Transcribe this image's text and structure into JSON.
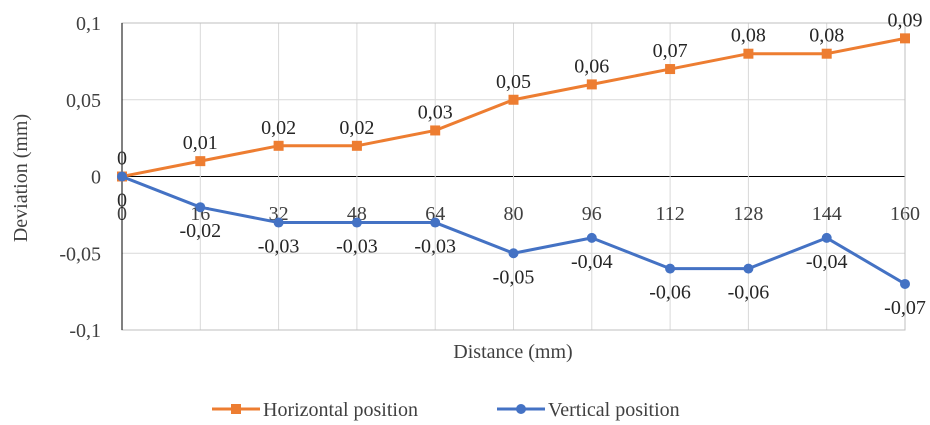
{
  "chart_data": {
    "type": "line",
    "xlabel": "Distance (mm)",
    "ylabel": "Deviation (mm)",
    "categories": [
      "0",
      "16",
      "32",
      "48",
      "64",
      "80",
      "96",
      "112",
      "128",
      "144",
      "160"
    ],
    "x": [
      0,
      16,
      32,
      48,
      64,
      80,
      96,
      112,
      128,
      144,
      160
    ],
    "ylim": [
      -0.1,
      0.1
    ],
    "yticks": [
      "-0,1",
      "-0,05",
      "0",
      "0,05",
      "0,1"
    ],
    "ytick_values": [
      -0.1,
      -0.05,
      0,
      0.05,
      0.1
    ],
    "grid": true,
    "legend_position": "bottom",
    "series": [
      {
        "name": "Horizontal position",
        "color": "#ED7D31",
        "marker": "square",
        "values": [
          0,
          0.01,
          0.02,
          0.02,
          0.03,
          0.05,
          0.06,
          0.07,
          0.08,
          0.08,
          0.09
        ],
        "labels": [
          "0",
          "0,01",
          "0,02",
          "0,02",
          "0,03",
          "0,05",
          "0,06",
          "0,07",
          "0,08",
          "0,08",
          "0,09"
        ]
      },
      {
        "name": "Vertical position",
        "color": "#4472C4",
        "marker": "circle",
        "values": [
          0,
          -0.02,
          -0.03,
          -0.03,
          -0.03,
          -0.05,
          -0.04,
          -0.06,
          -0.06,
          -0.04,
          -0.07
        ],
        "labels": [
          "0",
          "-0,02",
          "-0,03",
          "-0,03",
          "-0,03",
          "-0,05",
          "-0,04",
          "-0,06",
          "-0,06",
          "-0,04",
          "-0,07"
        ]
      }
    ]
  }
}
